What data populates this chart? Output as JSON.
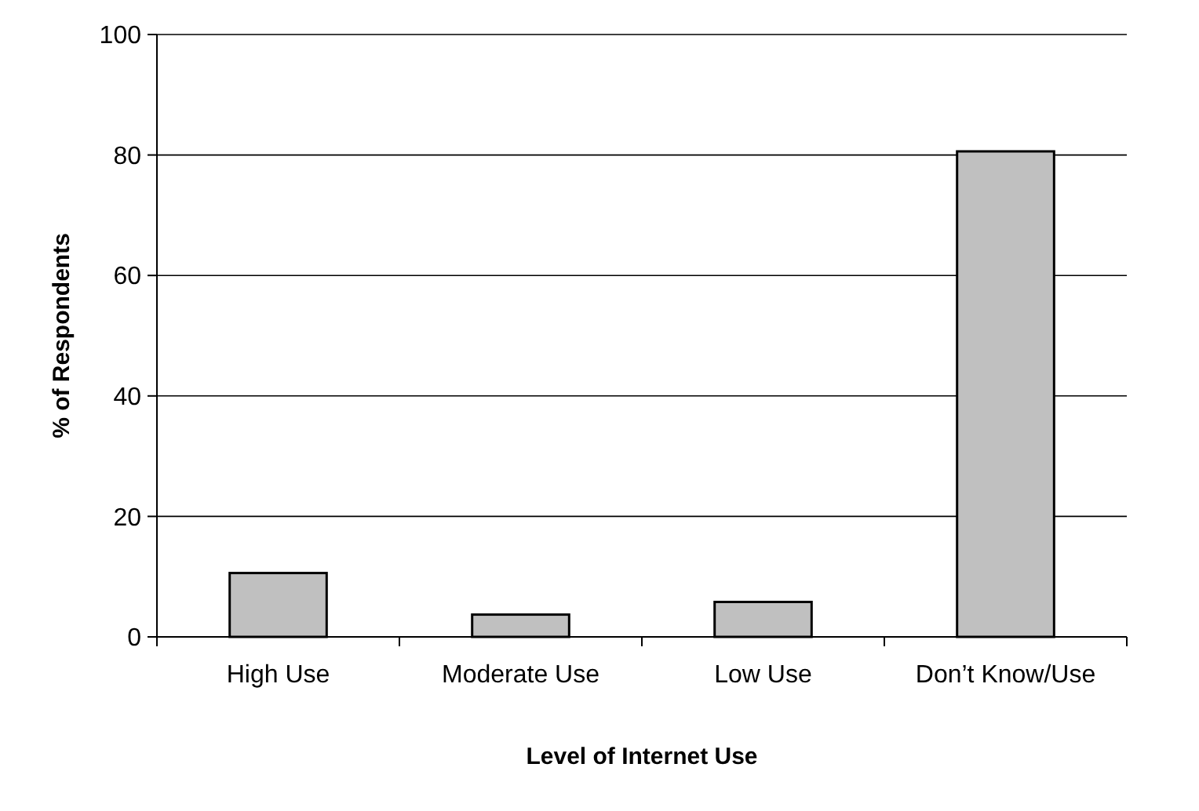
{
  "chart_data": {
    "type": "bar",
    "xlabel": "Level of Internet Use",
    "ylabel": "% of Respondents",
    "categories": [
      "High Use",
      "Moderate Use",
      "Low Use",
      "Don’t Know/Use"
    ],
    "values": [
      10.6,
      3.7,
      5.8,
      80.6
    ],
    "color": "#c0c0c0",
    "ylim": [
      0,
      100
    ],
    "yticks": [
      0,
      20,
      40,
      60,
      80,
      100
    ],
    "grid": "y"
  }
}
